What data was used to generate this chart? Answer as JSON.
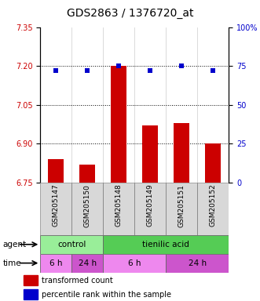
{
  "title": "GDS2863 / 1376720_at",
  "samples": [
    "GSM205147",
    "GSM205150",
    "GSM205148",
    "GSM205149",
    "GSM205151",
    "GSM205152"
  ],
  "bar_values": [
    6.84,
    6.82,
    7.2,
    6.97,
    6.98,
    6.9
  ],
  "dot_values": [
    72,
    72,
    75,
    72,
    75,
    72
  ],
  "ylim_left": [
    6.75,
    7.35
  ],
  "ylim_right": [
    0,
    100
  ],
  "yticks_left": [
    6.75,
    6.9,
    7.05,
    7.2,
    7.35
  ],
  "yticks_right": [
    0,
    25,
    50,
    75,
    100
  ],
  "hlines": [
    7.2,
    7.05,
    6.9
  ],
  "bar_color": "#cc0000",
  "dot_color": "#0000cc",
  "agent_labels": [
    {
      "label": "control",
      "start": 0,
      "end": 2,
      "color": "#99ee99"
    },
    {
      "label": "tienilic acid",
      "start": 2,
      "end": 6,
      "color": "#55cc55"
    }
  ],
  "time_labels": [
    {
      "label": "6 h",
      "start": 0,
      "end": 1,
      "color": "#ee88ee"
    },
    {
      "label": "24 h",
      "start": 1,
      "end": 2,
      "color": "#cc55cc"
    },
    {
      "label": "6 h",
      "start": 2,
      "end": 4,
      "color": "#ee88ee"
    },
    {
      "label": "24 h",
      "start": 4,
      "end": 6,
      "color": "#cc55cc"
    }
  ],
  "legend_bar_label": "transformed count",
  "legend_dot_label": "percentile rank within the sample",
  "xlabel_agent": "agent",
  "xlabel_time": "time",
  "title_fontsize": 10,
  "tick_fontsize": 7,
  "sample_fontsize": 6.5,
  "row_fontsize": 7.5,
  "legend_fontsize": 7,
  "bg_color": "#d8d8d8"
}
